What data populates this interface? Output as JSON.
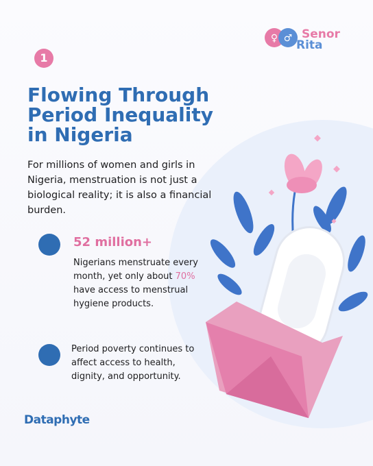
{
  "badge": "1",
  "logo": {
    "line1": "Senor",
    "line2": "Rita"
  },
  "title": {
    "lines": [
      "Flowing Through",
      "Period Inequality",
      "in Nigeria"
    ]
  },
  "intro": "For millions of women and girls in Nigeria, menstruation is not just a biological reality; it is also a financial burden.",
  "points": [
    {
      "headline": "52 million+",
      "text_parts": [
        "Nigerians menstruate every month, yet only about ",
        "70%",
        " have access to menstrual hygiene products."
      ]
    },
    {
      "text_parts": [
        "Period poverty continues to affect access to health, dignity, and opportunity."
      ]
    }
  ],
  "footer": "Dataphyte"
}
